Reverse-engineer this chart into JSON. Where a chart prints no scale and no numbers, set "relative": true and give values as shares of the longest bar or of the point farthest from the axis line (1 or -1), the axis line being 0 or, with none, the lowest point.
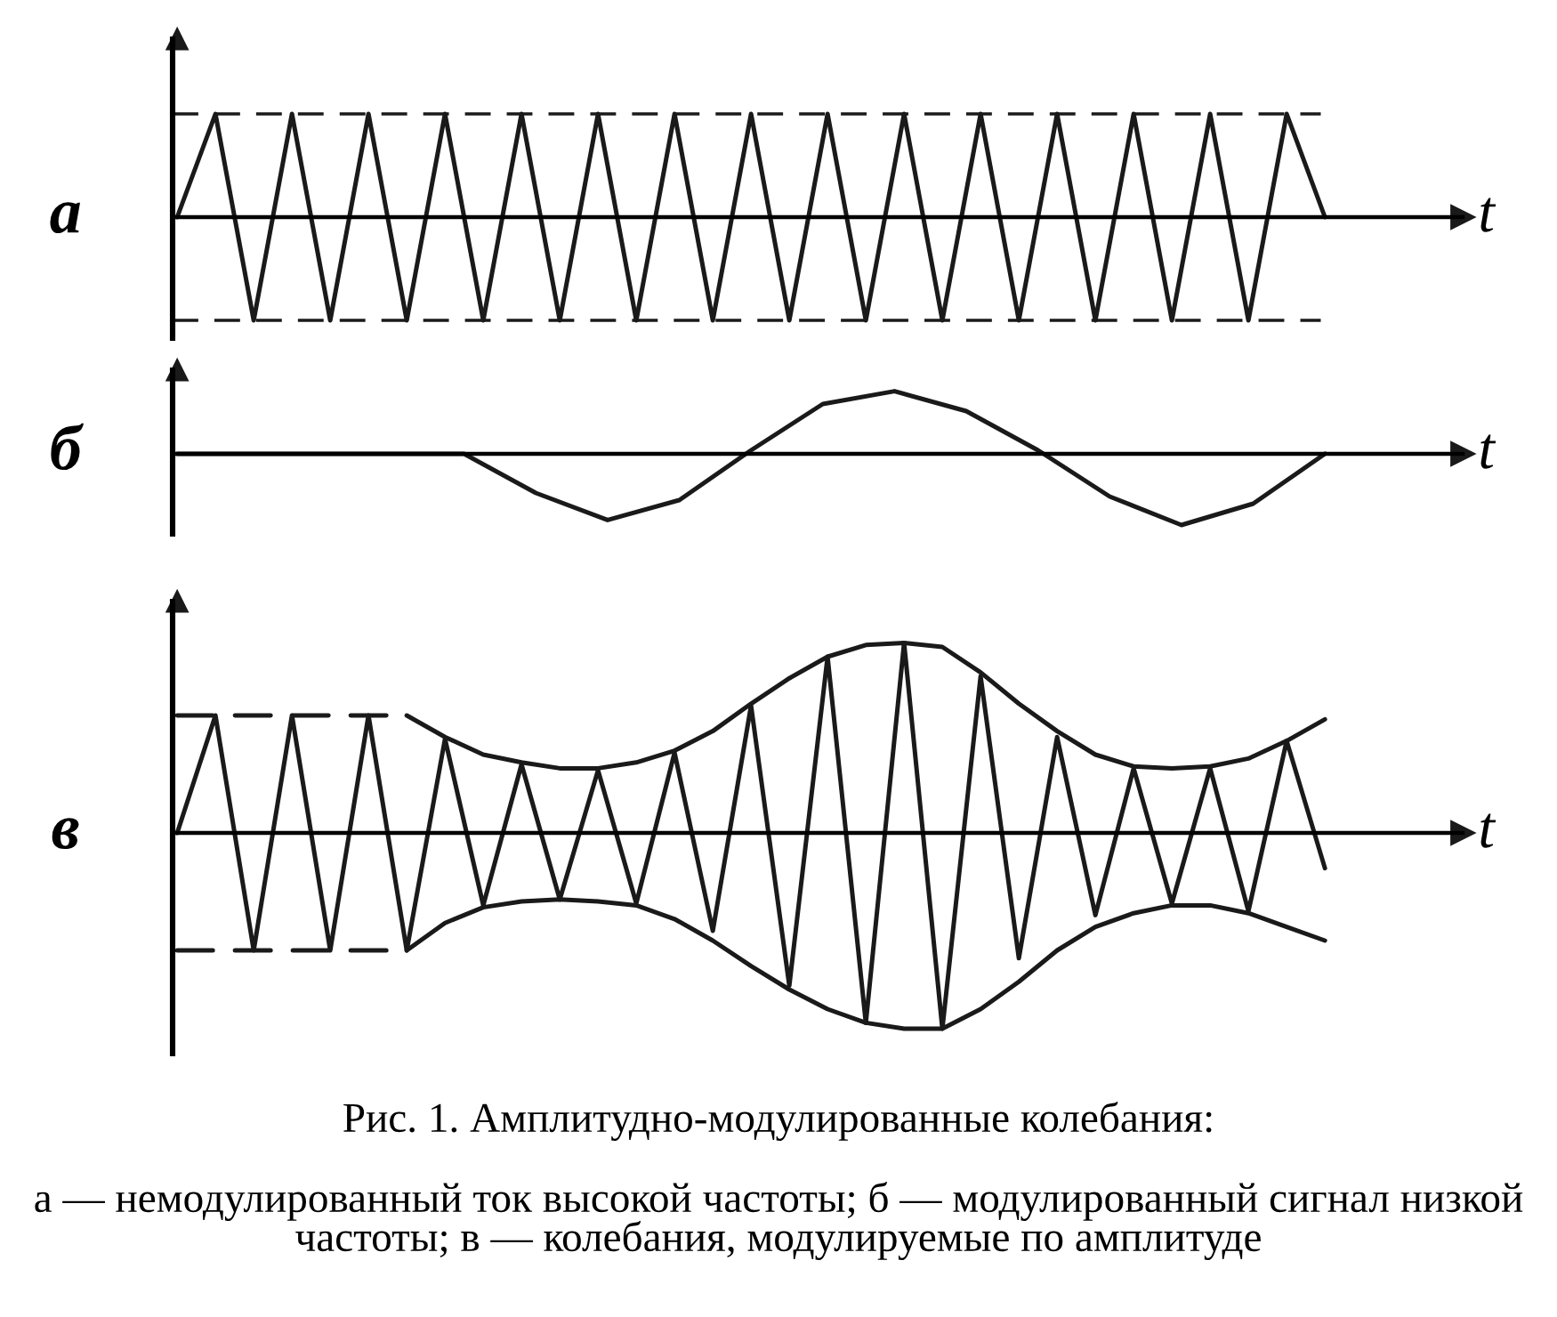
{
  "chart_data": [
    {
      "type": "line",
      "relative": true,
      "ylabel": "а",
      "xlabel": "t",
      "line_style": "solid",
      "categories": [
        null,
        null,
        null,
        null,
        null,
        null,
        null,
        null,
        null,
        null,
        null,
        null,
        null,
        null,
        null,
        null,
        null,
        null,
        null,
        null,
        null,
        null,
        null,
        null,
        null,
        null,
        null,
        null,
        null,
        null,
        null
      ],
      "series": [
        {
          "color": "#1a1a1a",
          "values": [
            0,
            1,
            -1,
            1,
            -1,
            1,
            -1,
            1,
            -1,
            1,
            -1,
            1,
            -1,
            1,
            -1,
            1,
            -1,
            1,
            -1,
            1,
            -1,
            1,
            -1,
            1,
            -1,
            1,
            -1,
            1,
            -1,
            1,
            0
          ]
        }
      ],
      "ref_lines": [
        {
          "axis": "y",
          "value": 1,
          "color": "#1a1a1a",
          "line_style": "dashed"
        },
        {
          "axis": "y",
          "value": -1,
          "color": "#1a1a1a",
          "line_style": "dashed"
        }
      ]
    },
    {
      "type": "line",
      "relative": true,
      "ylabel": "б",
      "xlabel": "t",
      "line_style": "solid",
      "categories": [
        null,
        null,
        null,
        null,
        null,
        null,
        null,
        null,
        null,
        null,
        null,
        null,
        null,
        null,
        null,
        null,
        null
      ],
      "series": [
        {
          "color": "#1a1a1a",
          "values": [
            0,
            0,
            0,
            0,
            0,
            -0.55,
            -0.93,
            -0.65,
            0.05,
            0.7,
            0.88,
            0.6,
            0.05,
            -0.6,
            -1,
            -0.7,
            0
          ]
        }
      ]
    },
    {
      "type": "line",
      "relative": true,
      "ylabel": "в",
      "xlabel": "t",
      "line_style": "solid",
      "categories": [
        null,
        null,
        null,
        null,
        null,
        null,
        null,
        null,
        null,
        null,
        null,
        null,
        null,
        null,
        null,
        null,
        null,
        null,
        null,
        null,
        null,
        null,
        null,
        null,
        null,
        null,
        null,
        null,
        null,
        null,
        null
      ],
      "series": [
        {
          "color": "#1a1a1a",
          "values": [
            0,
            0.6,
            -0.6,
            0.6,
            -0.6,
            0.6,
            -0.6,
            0.48,
            -0.37,
            0.35,
            -0.34,
            0.32,
            -0.36,
            0.41,
            -0.5,
            0.65,
            -0.78,
            0.9,
            -0.97,
            0.97,
            -1,
            0.8,
            -0.64,
            0.49,
            -0.42,
            0.33,
            -0.36,
            0.33,
            -0.4,
            0.47,
            -0.18
          ]
        },
        {
          "color": "#1a1a1a",
          "values": [
            null,
            null,
            null,
            null,
            null,
            null,
            0.6,
            0.49,
            0.4,
            0.36,
            0.33,
            0.33,
            0.36,
            0.42,
            0.52,
            0.66,
            0.79,
            0.9,
            0.96,
            0.97,
            0.95,
            0.82,
            0.66,
            0.52,
            0.4,
            0.34,
            0.33,
            0.34,
            0.38,
            0.47,
            0.58
          ]
        },
        {
          "color": "#1a1a1a",
          "values": [
            null,
            null,
            null,
            null,
            null,
            null,
            -0.6,
            -0.46,
            -0.38,
            -0.35,
            -0.34,
            -0.35,
            -0.37,
            -0.44,
            -0.55,
            -0.68,
            -0.8,
            -0.9,
            -0.97,
            -1,
            -1,
            -0.9,
            -0.76,
            -0.6,
            -0.48,
            -0.41,
            -0.37,
            -0.37,
            -0.41,
            -0.48,
            -0.55
          ]
        },
        {
          "color": "#1a1a1a",
          "line_style": "dashed",
          "values": [
            0.6,
            0.6,
            0.6,
            0.6,
            0.6,
            0.6,
            0.6,
            null,
            null,
            null,
            null,
            null,
            null,
            null,
            null,
            null,
            null,
            null,
            null,
            null,
            null,
            null,
            null,
            null,
            null,
            null,
            null,
            null,
            null,
            null,
            null
          ]
        },
        {
          "color": "#1a1a1a",
          "line_style": "dashed",
          "values": [
            -0.6,
            -0.6,
            -0.6,
            -0.6,
            -0.6,
            -0.6,
            -0.6,
            null,
            null,
            null,
            null,
            null,
            null,
            null,
            null,
            null,
            null,
            null,
            null,
            null,
            null,
            null,
            null,
            null,
            null,
            null,
            null,
            null,
            null,
            null,
            null
          ]
        }
      ],
      "annotations": [
        "Рис. 1. Амплитудно-модулированные колебания:",
        "а — немодулированный ток высокой частоты; б — модулированный сигнал низкой частоты; в — колебания, модулируемые по амплитуде"
      ]
    }
  ]
}
